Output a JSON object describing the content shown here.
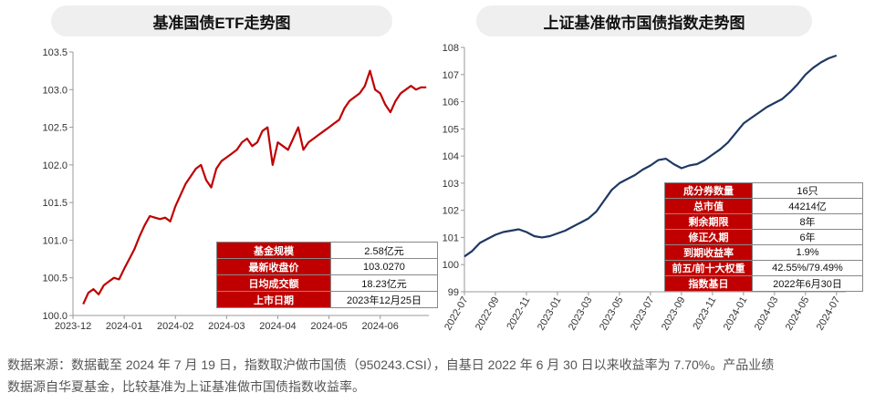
{
  "colors": {
    "fund_line": "#c00000",
    "index_line": "#1f3864",
    "header_red": "#c00000"
  },
  "footnote": {
    "line1": "数据来源：数据截至 2024 年 7 月 19 日，指数取沪做市国债（950243.CSI），自基日 2022 年 6 月 30 日以来收益率为 7.70%。产品业绩",
    "line2": "数据源自华夏基金，比较基准为上证基准做市国债指数收益率。"
  },
  "fund_table": {
    "rows": [
      {
        "label": "基金规模",
        "value": "2.58亿元"
      },
      {
        "label": "最新收盘价",
        "value": "103.0270"
      },
      {
        "label": "日均成交额",
        "value": "18.23亿元"
      },
      {
        "label": "上市日期",
        "value": "2023年12月25日"
      }
    ]
  },
  "index_table": {
    "rows": [
      {
        "label": "成分券数量",
        "value": "16只"
      },
      {
        "label": "总市值",
        "value": "44214亿"
      },
      {
        "label": "剩余期限",
        "value": "8年"
      },
      {
        "label": "修正久期",
        "value": "6年"
      },
      {
        "label": "到期收益率",
        "value": "1.9%"
      },
      {
        "label": "前五/前十大权重",
        "value": "42.55%/79.49%"
      },
      {
        "label": "指数基日",
        "value": "2022年6月30日"
      }
    ]
  },
  "chart_data": [
    {
      "type": "line",
      "title": "基准国债ETF走势图",
      "xlabel": "",
      "ylabel": "",
      "x_ticks": [
        "2023-12",
        "2024-01",
        "2024-02",
        "2024-03",
        "2024-04",
        "2024-05",
        "2024-06"
      ],
      "y_ticks": [
        "100.0",
        "100.5",
        "101.0",
        "101.5",
        "102.0",
        "102.5",
        "103.0",
        "103.5"
      ],
      "xlim": [
        0,
        6.95
      ],
      "ylim": [
        100.0,
        103.5
      ],
      "grid": false,
      "series": [
        {
          "name": "基准国债ETF",
          "x": [
            0.2,
            0.3,
            0.4,
            0.5,
            0.6,
            0.7,
            0.8,
            0.9,
            1.0,
            1.1,
            1.2,
            1.3,
            1.4,
            1.5,
            1.6,
            1.7,
            1.8,
            1.9,
            2.0,
            2.1,
            2.2,
            2.3,
            2.4,
            2.5,
            2.6,
            2.7,
            2.8,
            2.9,
            3.0,
            3.1,
            3.2,
            3.3,
            3.4,
            3.5,
            3.6,
            3.7,
            3.8,
            3.9,
            4.0,
            4.1,
            4.2,
            4.3,
            4.4,
            4.5,
            4.6,
            4.7,
            4.8,
            4.9,
            5.0,
            5.1,
            5.2,
            5.3,
            5.4,
            5.5,
            5.6,
            5.7,
            5.8,
            5.9,
            6.0,
            6.1,
            6.2,
            6.3,
            6.4,
            6.5,
            6.6,
            6.7,
            6.8,
            6.9
          ],
          "values": [
            100.15,
            100.3,
            100.35,
            100.28,
            100.4,
            100.45,
            100.5,
            100.48,
            100.62,
            100.75,
            100.88,
            101.05,
            101.2,
            101.32,
            101.3,
            101.28,
            101.3,
            101.25,
            101.45,
            101.6,
            101.75,
            101.85,
            101.95,
            102.0,
            101.8,
            101.7,
            101.95,
            102.05,
            102.1,
            102.15,
            102.2,
            102.3,
            102.35,
            102.25,
            102.3,
            102.45,
            102.5,
            102.0,
            102.3,
            102.25,
            102.2,
            102.35,
            102.5,
            102.2,
            102.3,
            102.35,
            102.4,
            102.45,
            102.5,
            102.55,
            102.6,
            102.75,
            102.85,
            102.9,
            102.95,
            103.05,
            103.25,
            103.0,
            102.95,
            102.8,
            102.7,
            102.85,
            102.95,
            103.0,
            103.05,
            103.0,
            103.03,
            103.03
          ]
        }
      ]
    },
    {
      "type": "line",
      "title": "上证基准做市国债指数走势图",
      "xlabel": "",
      "ylabel": "",
      "x_ticks": [
        "2022-07",
        "2022-09",
        "2022-11",
        "2023-01",
        "2023-03",
        "2023-05",
        "2023-07",
        "2023-09",
        "2023-11",
        "2024-01",
        "2024-03",
        "2024-05",
        "2024-07"
      ],
      "y_ticks": [
        "99",
        "100",
        "101",
        "102",
        "103",
        "104",
        "105",
        "106",
        "107",
        "108"
      ],
      "xlim": [
        0,
        24.6
      ],
      "ylim": [
        99,
        108
      ],
      "grid": false,
      "series": [
        {
          "name": "上证基准做市国债指数",
          "x": [
            0.0,
            0.5,
            1.0,
            1.5,
            2.0,
            2.5,
            3.0,
            3.5,
            4.0,
            4.5,
            5.0,
            5.5,
            6.0,
            6.5,
            7.0,
            7.5,
            8.0,
            8.5,
            9.0,
            9.5,
            10.0,
            10.5,
            11.0,
            11.5,
            12.0,
            12.5,
            13.0,
            13.5,
            14.0,
            14.5,
            15.0,
            15.5,
            16.0,
            16.5,
            17.0,
            17.5,
            18.0,
            18.5,
            19.0,
            19.5,
            20.0,
            20.5,
            21.0,
            21.5,
            22.0,
            22.5,
            23.0,
            23.5,
            24.0
          ],
          "values": [
            100.3,
            100.5,
            100.8,
            100.95,
            101.1,
            101.2,
            101.25,
            101.3,
            101.2,
            101.05,
            101.0,
            101.05,
            101.15,
            101.25,
            101.4,
            101.55,
            101.7,
            101.95,
            102.35,
            102.75,
            103.0,
            103.15,
            103.3,
            103.5,
            103.65,
            103.85,
            103.9,
            103.7,
            103.55,
            103.65,
            103.7,
            103.85,
            104.05,
            104.25,
            104.5,
            104.85,
            105.2,
            105.4,
            105.6,
            105.8,
            105.95,
            106.1,
            106.35,
            106.65,
            107.0,
            107.25,
            107.45,
            107.6,
            107.7
          ]
        }
      ]
    }
  ]
}
